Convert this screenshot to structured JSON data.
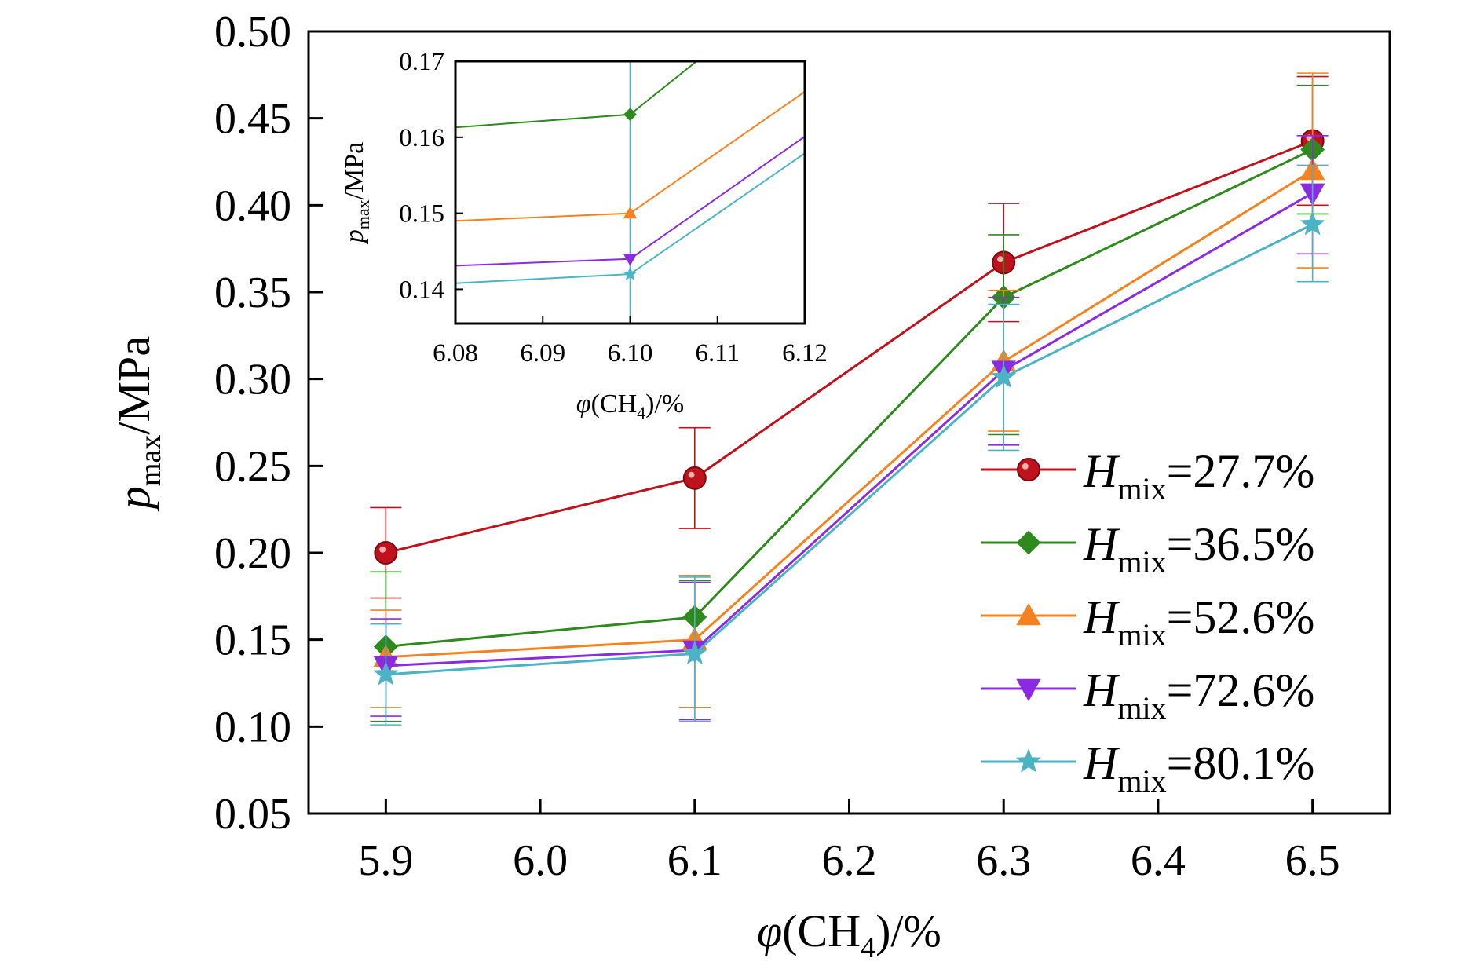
{
  "chart_data": {
    "type": "line",
    "xlabel": {
      "var": "φ",
      "paren": "(CH",
      "sub": "4",
      "rest": ")/%"
    },
    "ylabel": {
      "var": "p",
      "sub": "max",
      "rest": "/MPa"
    },
    "xlim": [
      5.85,
      6.55
    ],
    "ylim": [
      0.05,
      0.5
    ],
    "x_ticks": [
      5.9,
      6.0,
      6.1,
      6.2,
      6.3,
      6.4,
      6.5
    ],
    "x_tick_labels": [
      "5.9",
      "6.0",
      "6.1",
      "6.2",
      "6.3",
      "6.4",
      "6.5"
    ],
    "y_ticks": [
      0.05,
      0.1,
      0.15,
      0.2,
      0.25,
      0.3,
      0.35,
      0.4,
      0.45,
      0.5
    ],
    "y_tick_labels": [
      "0.05",
      "0.10",
      "0.15",
      "0.20",
      "0.25",
      "0.30",
      "0.35",
      "0.40",
      "0.45",
      "0.50"
    ],
    "legend_position": "right",
    "x": [
      5.9,
      6.1,
      6.3,
      6.5
    ],
    "series": [
      {
        "name": "27.7%",
        "label_var": "H",
        "label_sub": "mix",
        "color": "#c0121c",
        "marker": "circle",
        "values": [
          0.2,
          0.243,
          0.367,
          0.437
        ],
        "err_low": [
          0.174,
          0.214,
          0.333,
          0.4
        ],
        "err_high": [
          0.226,
          0.272,
          0.401,
          0.474
        ]
      },
      {
        "name": "36.5%",
        "label_var": "H",
        "label_sub": "mix",
        "color": "#2e8a1c",
        "marker": "diamond",
        "values": [
          0.146,
          0.163,
          0.347,
          0.432
        ],
        "err_low": [
          0.103,
          0.111,
          0.268,
          0.395
        ],
        "err_high": [
          0.189,
          0.184,
          0.383,
          0.469
        ]
      },
      {
        "name": "52.6%",
        "label_var": "H",
        "label_sub": "mix",
        "color": "#f5821f",
        "marker": "triangle-up",
        "values": [
          0.14,
          0.15,
          0.31,
          0.42
        ],
        "err_low": [
          0.111,
          0.111,
          0.27,
          0.364
        ],
        "err_high": [
          0.167,
          0.187,
          0.351,
          0.476
        ]
      },
      {
        "name": "72.6%",
        "label_var": "H",
        "label_sub": "mix",
        "color": "#8a2be2",
        "marker": "triangle-down",
        "values": [
          0.135,
          0.144,
          0.305,
          0.407
        ],
        "err_low": [
          0.106,
          0.104,
          0.262,
          0.372
        ],
        "err_high": [
          0.162,
          0.183,
          0.347,
          0.44
        ]
      },
      {
        "name": "80.1%",
        "label_var": "H",
        "label_sub": "mix",
        "color": "#4bb3c4",
        "marker": "star",
        "values": [
          0.13,
          0.142,
          0.301,
          0.389
        ],
        "err_low": [
          0.101,
          0.103,
          0.259,
          0.356
        ],
        "err_high": [
          0.159,
          0.186,
          0.343,
          0.423
        ]
      }
    ],
    "inset": {
      "xlim": [
        6.08,
        6.12
      ],
      "ylim": [
        0.1355,
        0.17
      ],
      "x_ticks": [
        6.08,
        6.09,
        6.1,
        6.11,
        6.12
      ],
      "x_tick_labels": [
        "6.08",
        "6.09",
        "6.10",
        "6.11",
        "6.12"
      ],
      "y_ticks": [
        0.14,
        0.15,
        0.16,
        0.17
      ],
      "y_tick_labels": [
        "0.14",
        "0.15",
        "0.16",
        "0.17"
      ],
      "vertical_line_x": 6.1
    }
  }
}
